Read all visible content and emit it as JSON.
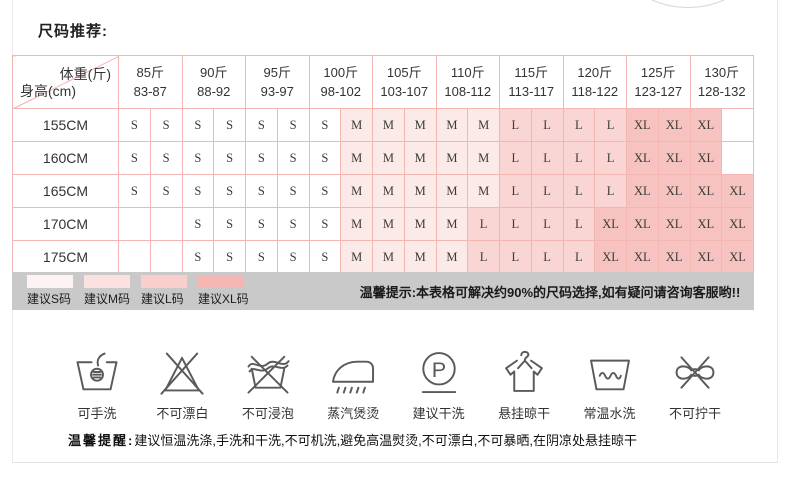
{
  "title": "尺码推荐:",
  "table": {
    "corner": {
      "top": "体重(斤)",
      "bottom": "身高(cm)"
    },
    "columns": [
      {
        "weight": "85斤",
        "range": "83-87"
      },
      {
        "weight": "90斤",
        "range": "88-92"
      },
      {
        "weight": "95斤",
        "range": "93-97"
      },
      {
        "weight": "100斤",
        "range": "98-102"
      },
      {
        "weight": "105斤",
        "range": "103-107"
      },
      {
        "weight": "110斤",
        "range": "108-112"
      },
      {
        "weight": "115斤",
        "range": "113-117"
      },
      {
        "weight": "120斤",
        "range": "118-122"
      },
      {
        "weight": "125斤",
        "range": "123-127"
      },
      {
        "weight": "130斤",
        "range": "128-132"
      }
    ],
    "rows": [
      {
        "height": "155CM",
        "cells": [
          "S",
          "S",
          "S",
          "S",
          "S",
          "S",
          "S",
          "M",
          "M",
          "M",
          "M",
          "M",
          "L",
          "L",
          "L",
          "L",
          "XL",
          "XL",
          "XL",
          ""
        ]
      },
      {
        "height": "160CM",
        "cells": [
          "S",
          "S",
          "S",
          "S",
          "S",
          "S",
          "S",
          "M",
          "M",
          "M",
          "M",
          "M",
          "L",
          "L",
          "L",
          "L",
          "XL",
          "XL",
          "XL",
          ""
        ]
      },
      {
        "height": "165CM",
        "cells": [
          "S",
          "S",
          "S",
          "S",
          "S",
          "S",
          "S",
          "M",
          "M",
          "M",
          "M",
          "M",
          "L",
          "L",
          "L",
          "L",
          "XL",
          "XL",
          "XL",
          "XL"
        ]
      },
      {
        "height": "170CM",
        "cells": [
          "",
          "",
          "S",
          "S",
          "S",
          "S",
          "S",
          "M",
          "M",
          "M",
          "M",
          "L",
          "L",
          "L",
          "L",
          "XL",
          "XL",
          "XL",
          "XL",
          "XL"
        ]
      },
      {
        "height": "175CM",
        "cells": [
          "",
          "",
          "S",
          "S",
          "S",
          "S",
          "S",
          "M",
          "M",
          "M",
          "M",
          "L",
          "L",
          "L",
          "L",
          "XL",
          "XL",
          "XL",
          "XL",
          "XL"
        ]
      }
    ],
    "size_colors": {
      "S": "#ffffff",
      "M": "#fceae8",
      "L": "#f9d6d3",
      "XL": "#f7c3c0",
      "": "#ffffff"
    }
  },
  "legend": {
    "items": [
      {
        "label": "建议S码",
        "color": "#fdf3f3"
      },
      {
        "label": "建议M码",
        "color": "#fbe2e0"
      },
      {
        "label": "建议L码",
        "color": "#f8cfcc"
      },
      {
        "label": "建议XL码",
        "color": "#f5b6b3"
      }
    ],
    "tip": "温馨提示:本表格可解决约90%的尺码选择,如有疑问请咨询客服哟!!"
  },
  "care_icons": [
    {
      "icon": "hand-wash-icon",
      "label": "可手洗"
    },
    {
      "icon": "no-bleach-icon",
      "label": "不可漂白"
    },
    {
      "icon": "no-soak-icon",
      "label": "不可浸泡"
    },
    {
      "icon": "steam-iron-icon",
      "label": "蒸汽煲烫"
    },
    {
      "icon": "dry-clean-icon",
      "label": "建议干洗"
    },
    {
      "icon": "hang-dry-icon",
      "label": "悬挂晾干"
    },
    {
      "icon": "normal-temp-wash-icon",
      "label": "常温水洗"
    },
    {
      "icon": "no-wring-icon",
      "label": "不可拧干"
    }
  ],
  "warning": {
    "prefix": "温馨提醒:",
    "text": "建议恒温洗涤,手洗和干洗,不可机洗,避免高温熨烫,不可漂白,不可暴晒,在阴凉处悬挂晾干"
  }
}
